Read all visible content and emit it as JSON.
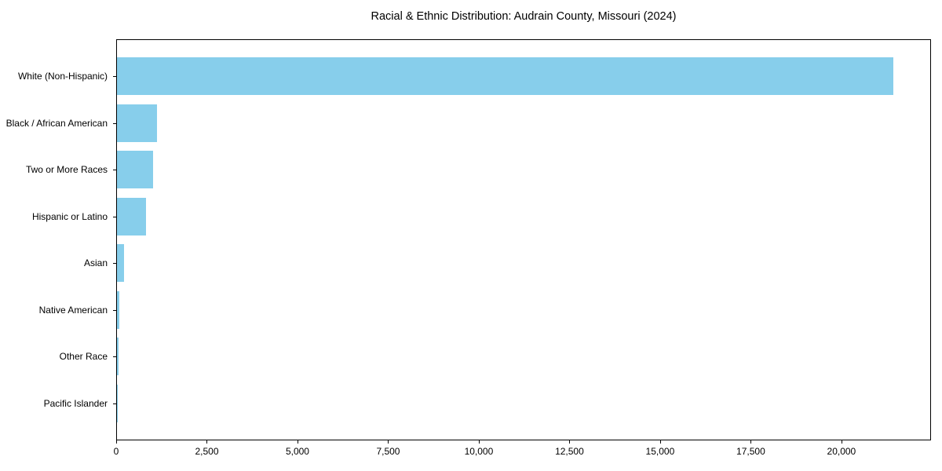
{
  "chart_data": {
    "type": "bar",
    "orientation": "horizontal",
    "title": "Racial & Ethnic Distribution: Audrain County, Missouri (2024)",
    "xlabel": "",
    "ylabel": "",
    "categories": [
      "White (Non-Hispanic)",
      "Black / African American",
      "Two or More Races",
      "Hispanic or Latino",
      "Asian",
      "Native American",
      "Other Race",
      "Pacific Islander"
    ],
    "values": [
      21400,
      1100,
      1000,
      800,
      200,
      60,
      50,
      10
    ],
    "xlim": [
      0,
      22470
    ],
    "xticks": [
      0,
      2500,
      5000,
      7500,
      10000,
      12500,
      15000,
      17500,
      20000
    ],
    "xtick_labels": [
      "0",
      "2,500",
      "5,000",
      "7,500",
      "10,000",
      "12,500",
      "15,000",
      "17,500",
      "20,000"
    ],
    "bar_color": "#87CEEB",
    "axis_color": "#000000",
    "background_color": "#ffffff",
    "grid": false,
    "legend": null
  }
}
